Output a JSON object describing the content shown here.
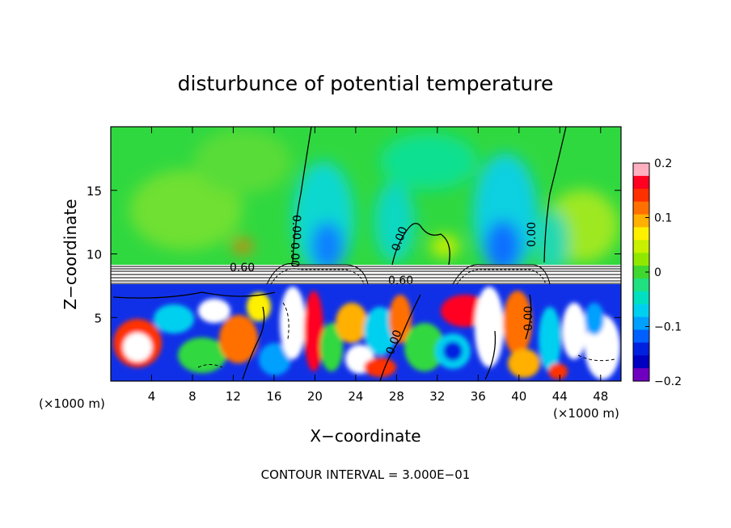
{
  "chart_data": {
    "type": "heatmap",
    "title": "disturbunce of potential temperature",
    "xlabel": "X−coordinate",
    "ylabel": "Z−coordinate",
    "x_unit_left": "(×1000 m)",
    "x_unit_right": "(×1000 m)",
    "footer": "CONTOUR INTERVAL = 3.000E−01",
    "xlim": [
      0,
      50
    ],
    "ylim": [
      0,
      20
    ],
    "x_ticks": [
      4,
      8,
      12,
      16,
      20,
      24,
      28,
      32,
      36,
      40,
      44,
      48
    ],
    "x_tick_labels": [
      "4",
      "8",
      "12",
      "16",
      "20",
      "24",
      "28",
      "32",
      "36",
      "40",
      "44",
      "48"
    ],
    "y_ticks": [
      5,
      10,
      15
    ],
    "y_tick_labels": [
      "5",
      "10",
      "15"
    ],
    "colorbar": {
      "min": -0.2,
      "max": 0.2,
      "ticks": [
        0.2,
        0.1,
        0,
        -0.1,
        -0.2
      ],
      "tick_labels": [
        "0.2",
        "0.1",
        "0",
        "−0.1",
        "−0.2"
      ],
      "colors": [
        "#ffb0c0",
        "#ff0020",
        "#ff3000",
        "#ff7000",
        "#ffb000",
        "#fff000",
        "#c8f000",
        "#90e800",
        "#40d830",
        "#20e080",
        "#00e0c0",
        "#00d0f0",
        "#00a0ff",
        "#0060ff",
        "#0020e0",
        "#0000c0",
        "#7000c0"
      ]
    },
    "contour_labels": [
      "0.60",
      "0.60",
      "0.00",
      "0.00",
      "0.00",
      "0.00",
      "0.00",
      "0.00"
    ]
  }
}
